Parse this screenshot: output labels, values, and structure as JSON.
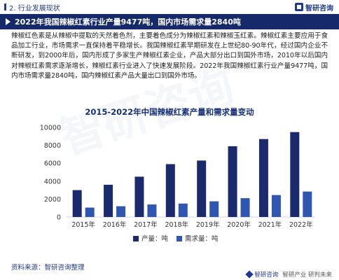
{
  "header": {
    "section_label": "2. 行业发展现状",
    "brand_name": "智研咨询"
  },
  "title": "2022年我国辣椒红素行业产量9477吨，国内市场需求量2840吨",
  "paragraph": "辣椒红色素是从辣椒中提取的天然着色剂，主要着色成分为辣椒红素和辣椒玉红素。辣椒红素主要应用于食品加工行业，市场需求一直保持着平稳增长。我国辣椒红素早期研发在上世纪80-90年代，经过国内企业不断研发，到2000年后，国内形成了多家生产辣椒红素企业，产品大部分出口到国外市场，2010年以后国内对辣椒红素需求逐渐增长，辣椒红素行业进入了快速发展阶段。2022年我国辣椒红素行业产量9477吨，国内市场需求量2840吨，国内辣椒红素产品大量出口到国外市场。",
  "source": "资料来源：智研咨询整理",
  "footer": {
    "brand": "智研咨询",
    "slogan": "智研产业 研判未来"
  },
  "watermark": "智研咨询",
  "colors": {
    "title_bar": "#15296b",
    "production": "#1a2a6c",
    "demand": "#2f56b0"
  },
  "chart_data": {
    "type": "bar",
    "title": "2015-2022年中国辣椒红素产量和需求量变动",
    "categories": [
      "2015年",
      "2016年",
      "2017年",
      "2018年",
      "2019年",
      "2020年",
      "2021年",
      "2022年"
    ],
    "series": [
      {
        "name": "产量：吨",
        "values": [
          3000,
          3600,
          4500,
          5900,
          6300,
          7900,
          8700,
          9477
        ]
      },
      {
        "name": "需求量：吨",
        "values": [
          1050,
          1200,
          1400,
          1500,
          1750,
          2100,
          2450,
          2840
        ]
      }
    ],
    "ylim": [
      0,
      10000
    ],
    "yticks": [
      "0",
      "2000",
      "4000",
      "6000",
      "8000",
      "10000"
    ],
    "grid": false,
    "legend_position": "bottom"
  }
}
